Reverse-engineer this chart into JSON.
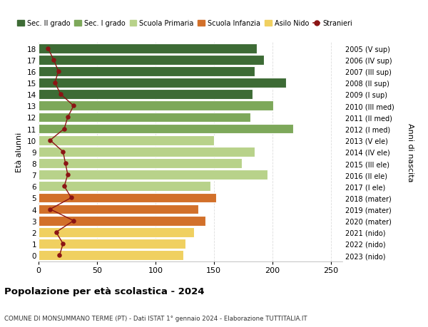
{
  "ages": [
    18,
    17,
    16,
    15,
    14,
    13,
    12,
    11,
    10,
    9,
    8,
    7,
    6,
    5,
    4,
    3,
    2,
    1,
    0
  ],
  "bar_values": [
    187,
    193,
    185,
    212,
    183,
    201,
    181,
    218,
    150,
    185,
    174,
    196,
    147,
    152,
    137,
    143,
    133,
    126,
    124
  ],
  "stranieri": [
    8,
    13,
    17,
    14,
    19,
    30,
    25,
    22,
    10,
    21,
    23,
    25,
    22,
    28,
    10,
    30,
    15,
    21,
    18
  ],
  "right_labels": [
    "2005 (V sup)",
    "2006 (IV sup)",
    "2007 (III sup)",
    "2008 (II sup)",
    "2009 (I sup)",
    "2010 (III med)",
    "2011 (II med)",
    "2012 (I med)",
    "2013 (V ele)",
    "2014 (IV ele)",
    "2015 (III ele)",
    "2016 (II ele)",
    "2017 (I ele)",
    "2018 (mater)",
    "2019 (mater)",
    "2020 (mater)",
    "2021 (nido)",
    "2022 (nido)",
    "2023 (nido)"
  ],
  "bar_colors_by_age": {
    "18": "#3d6b35",
    "17": "#3d6b35",
    "16": "#3d6b35",
    "15": "#3d6b35",
    "14": "#3d6b35",
    "13": "#7da85a",
    "12": "#7da85a",
    "11": "#7da85a",
    "10": "#b8d28a",
    "9": "#b8d28a",
    "8": "#b8d28a",
    "7": "#b8d28a",
    "6": "#b8d28a",
    "5": "#d2702a",
    "4": "#d2702a",
    "3": "#d2702a",
    "2": "#f0d060",
    "1": "#f0d060",
    "0": "#f0d060"
  },
  "stranieri_color": "#8b1414",
  "xlim": [
    0,
    260
  ],
  "xticks": [
    0,
    50,
    100,
    150,
    200,
    250
  ],
  "ylabel": "Età alunni",
  "right_ylabel": "Anni di nascita",
  "title": "Popolazione per età scolastica - 2024",
  "subtitle": "COMUNE DI MONSUMMANO TERME (PT) - Dati ISTAT 1° gennaio 2024 - Elaborazione TUTTITALIA.IT",
  "legend_labels": [
    "Sec. II grado",
    "Sec. I grado",
    "Scuola Primaria",
    "Scuola Infanzia",
    "Asilo Nido",
    "Stranieri"
  ],
  "legend_colors": [
    "#3d6b35",
    "#7da85a",
    "#b8d28a",
    "#d2702a",
    "#f0d060",
    "#8b1414"
  ],
  "bg_color": "#ffffff",
  "bar_height": 0.85,
  "grid_color": "#dddddd",
  "white_sep": "#ffffff"
}
